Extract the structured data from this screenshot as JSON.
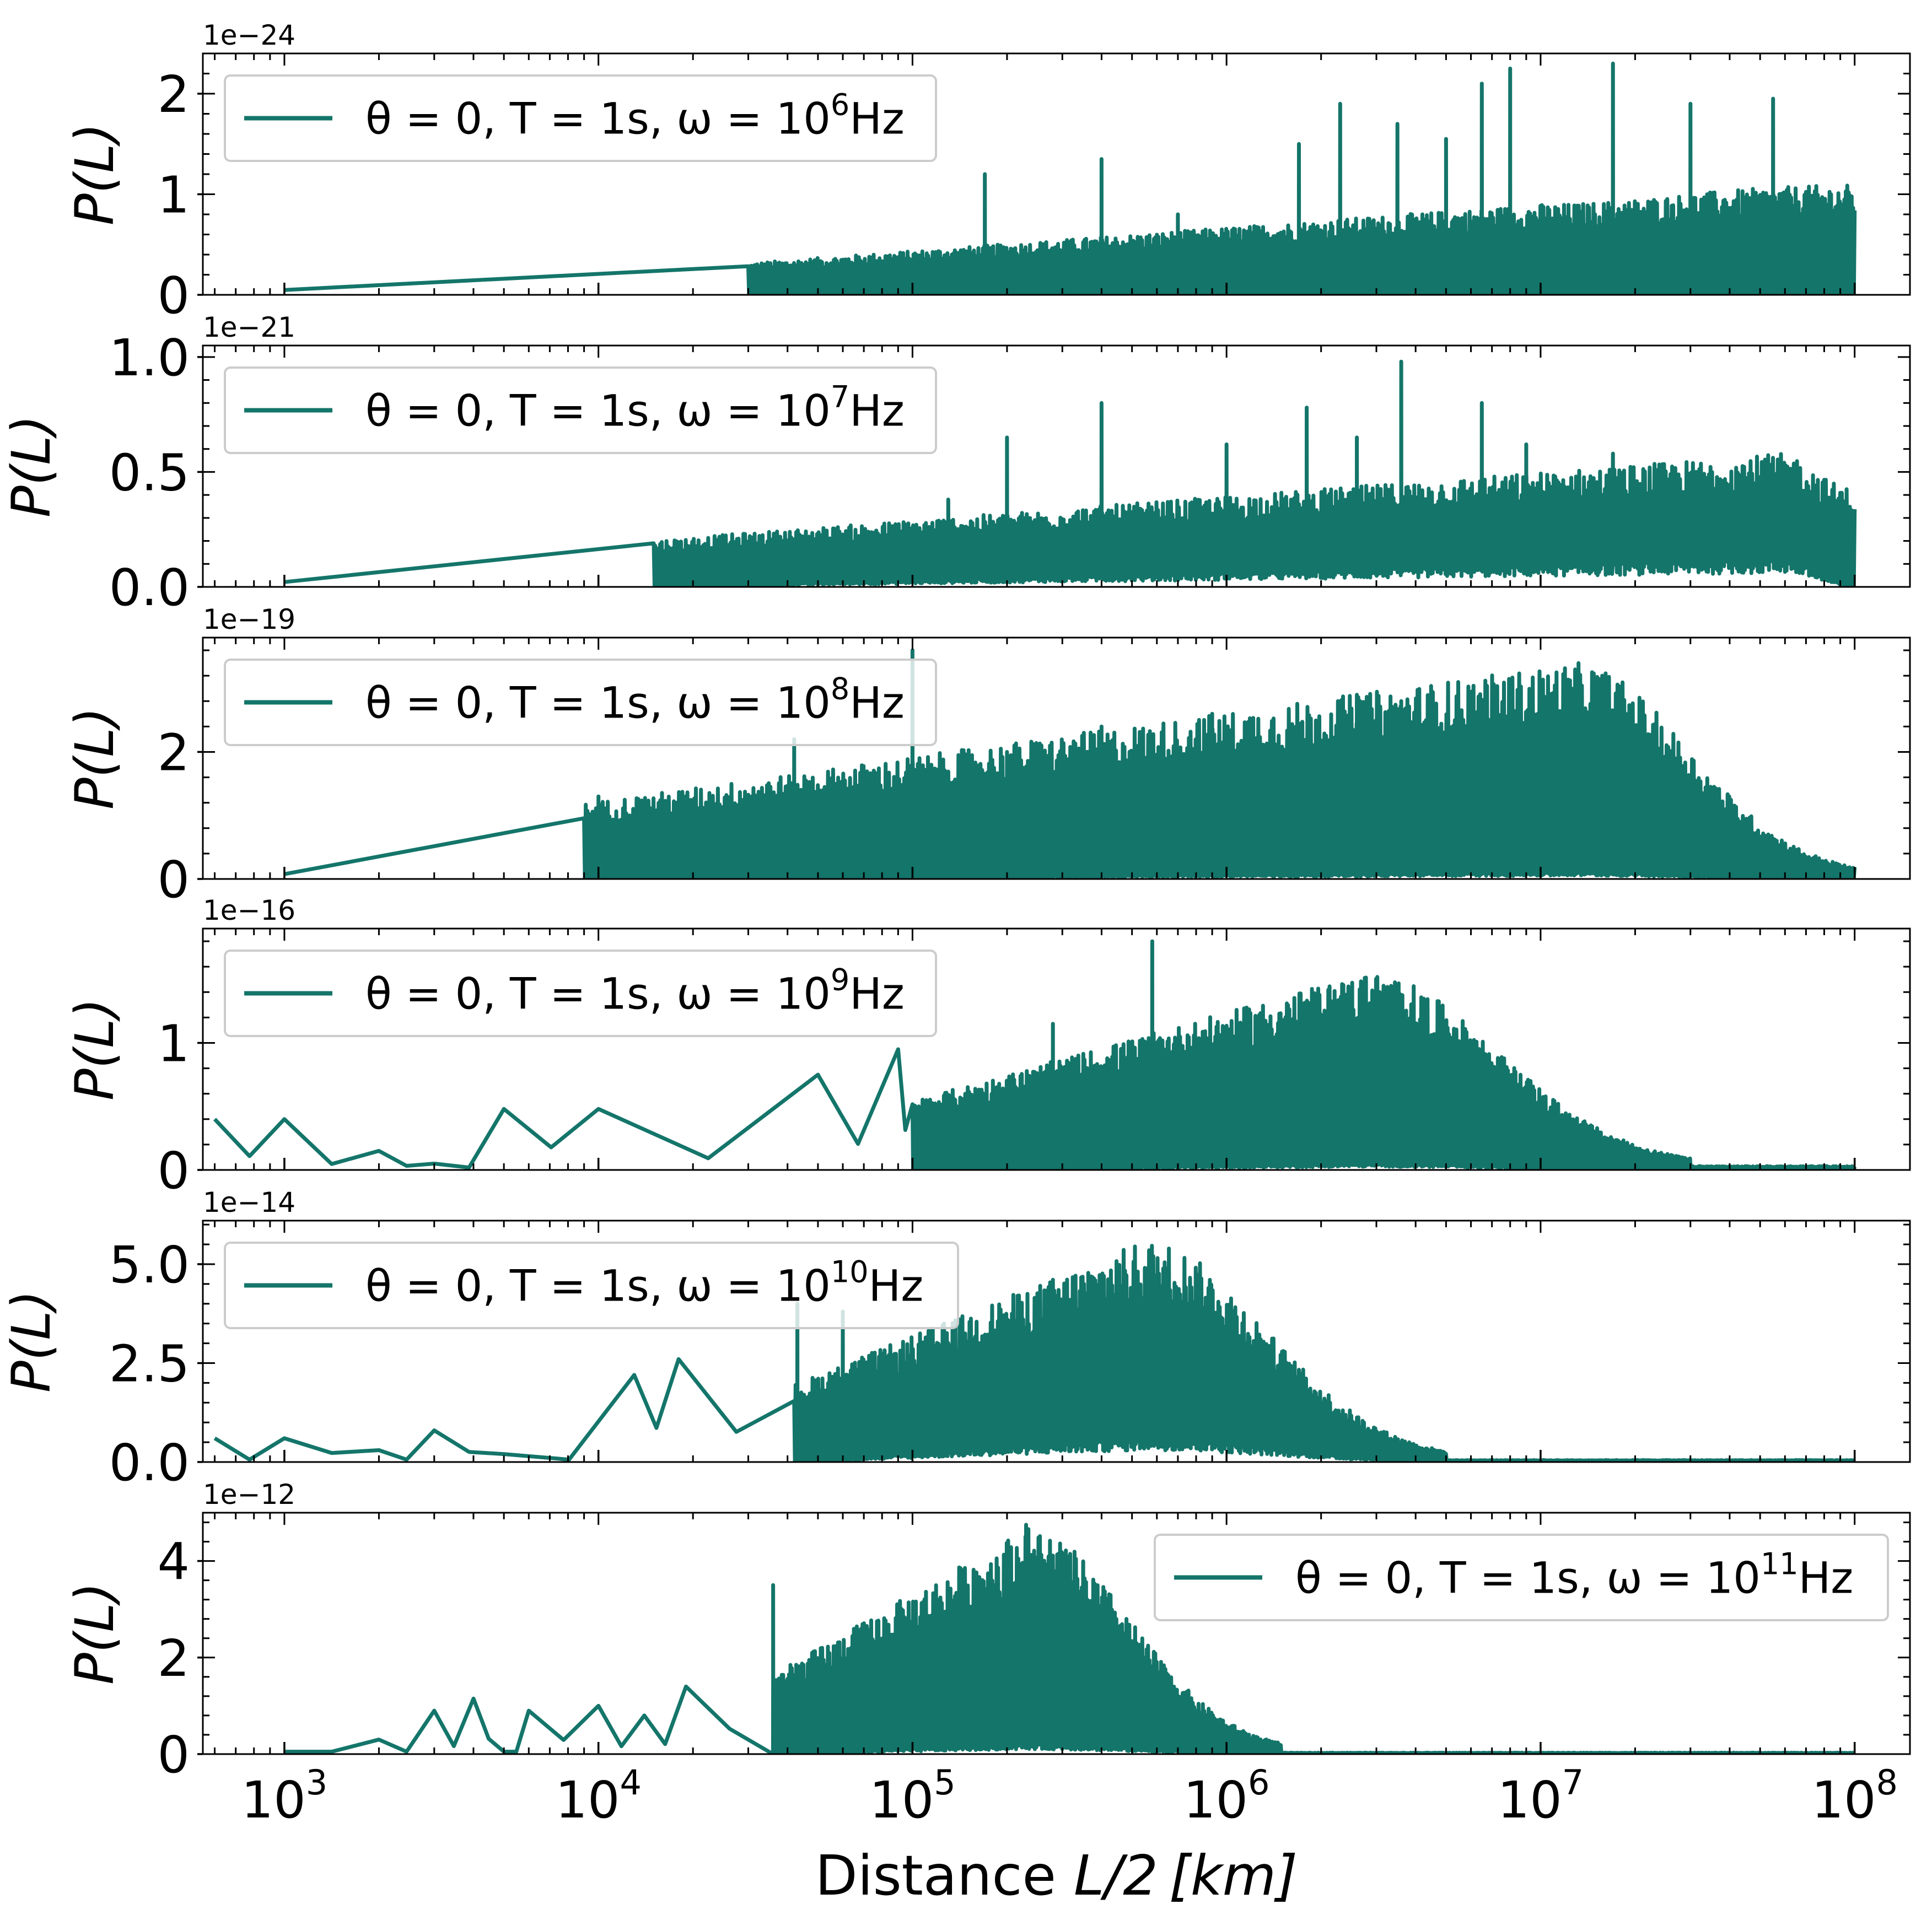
{
  "chart_data": {
    "type": "line",
    "line_color": "#14756A",
    "x_scale": "log",
    "xlim": [
      550,
      150000000
    ],
    "xticks": [
      1000,
      10000,
      100000,
      1000000,
      10000000,
      100000000
    ],
    "xtick_labels": [
      [
        "10",
        "3"
      ],
      [
        "10",
        "4"
      ],
      [
        "10",
        "5"
      ],
      [
        "10",
        "6"
      ],
      [
        "10",
        "7"
      ],
      [
        "10",
        "8"
      ]
    ],
    "xlabel_pre": "Distance ",
    "xlabel_math": "L/2 [km]",
    "panels": [
      {
        "ylabel": "P(L)",
        "offset": "1e−24",
        "ylim": [
          0,
          2.4
        ],
        "yticks": [
          0,
          1,
          2
        ],
        "ytick_labels": [
          "0",
          "1",
          "2"
        ],
        "legend": {
          "pre": "θ = 0, T = 1s, ω = 10",
          "sup": "6",
          "post": "Hz",
          "loc": "upper left"
        },
        "series": {
          "name": "θ = 0, T = 1s, ω = 10⁶Hz",
          "x_range": [
            1000,
            100000000
          ],
          "onset": 30000,
          "ramp_end": 10000000,
          "peak": 0.9,
          "base": 0.0,
          "decay_end": 100000000,
          "tail": 1.1,
          "spikes": [
            [
              40000,
              0.1
            ],
            [
              60000,
              0.2
            ],
            [
              100000,
              0.35
            ],
            [
              170000,
              1.2
            ],
            [
              400000,
              1.35
            ],
            [
              700000,
              0.8
            ],
            [
              1700000,
              1.5
            ],
            [
              2300000,
              1.9
            ],
            [
              3500000,
              1.7
            ],
            [
              5000000,
              1.55
            ],
            [
              6500000,
              2.1
            ],
            [
              8000000,
              2.25
            ],
            [
              17000000,
              2.3
            ],
            [
              30000000,
              1.9
            ],
            [
              55000000,
              1.95
            ]
          ]
        }
      },
      {
        "ylabel": "P(L)",
        "offset": "1e−21",
        "ylim": [
          0,
          1.05
        ],
        "yticks": [
          0,
          0.5,
          1.0
        ],
        "ytick_labels": [
          "0.0",
          "0.5",
          "1.0"
        ],
        "legend": {
          "pre": "θ = 0, T = 1s, ω = 10",
          "sup": "7",
          "post": "Hz",
          "loc": "upper left"
        },
        "series": {
          "name": "θ = 0, T = 1s, ω = 10⁷Hz",
          "x_range": [
            1000,
            100000000
          ],
          "onset": 15000,
          "ramp_end": 60000000,
          "peak": 0.58,
          "base": 0.12,
          "decay_end": 100000000,
          "tail": 0.42,
          "spikes": [
            [
              42000,
              0.18
            ],
            [
              60000,
              0.15
            ],
            [
              90000,
              0.25
            ],
            [
              130000,
              0.38
            ],
            [
              200000,
              0.65
            ],
            [
              400000,
              0.8
            ],
            [
              1000000,
              0.62
            ],
            [
              1800000,
              0.78
            ],
            [
              2600000,
              0.65
            ],
            [
              3600000,
              0.98
            ],
            [
              6500000,
              0.8
            ],
            [
              9000000,
              0.62
            ],
            [
              17000000,
              0.58
            ]
          ]
        }
      },
      {
        "ylabel": "P(L)",
        "offset": "1e−19",
        "ylim": [
          0,
          3.8
        ],
        "yticks": [
          0,
          2
        ],
        "ytick_labels": [
          "0",
          "2"
        ],
        "legend": {
          "pre": "θ = 0, T = 1s, ω = 10",
          "sup": "8",
          "post": "Hz",
          "loc": "upper left"
        },
        "series": {
          "name": "θ = 0, T = 1s, ω = 10⁸Hz",
          "x_range": [
            1000,
            100000000
          ],
          "onset": 9000,
          "ramp_end": 13000000,
          "peak": 3.4,
          "base": 0.1,
          "decay_end": 100000000,
          "tail": 0.05,
          "spikes": [
            [
              10000,
              1.3
            ],
            [
              42000,
              2.2
            ],
            [
              100000,
              3.6
            ],
            [
              200000,
              2.0
            ],
            [
              400000,
              2.4
            ],
            [
              900000,
              2.6
            ],
            [
              2600000,
              2.9
            ],
            [
              3600000,
              2.8
            ],
            [
              18000000,
              2.8
            ]
          ]
        }
      },
      {
        "ylabel": "P(L)",
        "offset": "1e−16",
        "ylim": [
          0,
          1.9
        ],
        "yticks": [
          0,
          1
        ],
        "ytick_labels": [
          "0",
          "1"
        ],
        "legend": {
          "pre": "θ = 0, T = 1s, ω = 10",
          "sup": "9",
          "post": "Hz",
          "loc": "upper left"
        },
        "series": {
          "name": "θ = 0, T = 1s, ω = 10⁹Hz",
          "x_range": [
            600,
            100000000
          ],
          "onset": 100000,
          "ramp_end": 2800000,
          "peak": 1.55,
          "base": 0.05,
          "decay_end": 30000000,
          "tail": 0.03,
          "spikes": [
            [
              600,
              0.4
            ],
            [
              1000,
              0.4
            ],
            [
              2000,
              0.15
            ],
            [
              3000,
              0.05
            ],
            [
              5000,
              0.48
            ],
            [
              10000,
              0.48
            ],
            [
              50000,
              0.75
            ],
            [
              90000,
              0.95
            ],
            [
              280000,
              1.15
            ],
            [
              580000,
              1.8
            ]
          ]
        }
      },
      {
        "ylabel": "P(L)",
        "offset": "1e−14",
        "ylim": [
          0,
          6.1
        ],
        "yticks": [
          0,
          2.5,
          5.0
        ],
        "ytick_labels": [
          "0.0",
          "2.5",
          "5.0"
        ],
        "legend": {
          "pre": "θ = 0, T = 1s, ω = 10",
          "sup": "10",
          "post": "Hz",
          "loc": "upper left"
        },
        "series": {
          "name": "θ = 0, T = 1s, ω = 10¹⁰Hz",
          "x_range": [
            600,
            100000000
          ],
          "onset": 42000,
          "ramp_end": 550000,
          "peak": 5.6,
          "base": 0.6,
          "decay_end": 5000000,
          "tail": 0.05,
          "spikes": [
            [
              600,
              0.6
            ],
            [
              1000,
              0.6
            ],
            [
              2000,
              0.3
            ],
            [
              3000,
              0.8
            ],
            [
              5000,
              0.2
            ],
            [
              13000,
              2.2
            ],
            [
              18000,
              2.6
            ],
            [
              43000,
              4.0
            ],
            [
              60000,
              3.8
            ]
          ]
        }
      },
      {
        "ylabel": "P(L)",
        "offset": "1e−12",
        "ylim": [
          0,
          5.0
        ],
        "yticks": [
          0,
          2,
          4
        ],
        "ytick_labels": [
          "0",
          "2",
          "4"
        ],
        "legend": {
          "pre": "θ = 0, T = 1s, ω = 10",
          "sup": "11",
          "post": "Hz",
          "loc": "upper right"
        },
        "series": {
          "name": "θ = 0, T = 1s, ω = 10¹¹Hz",
          "x_range": [
            1000,
            100000000
          ],
          "onset": 36000,
          "ramp_end": 230000,
          "peak": 4.7,
          "base": 0.2,
          "decay_end": 1500000,
          "tail": 0.03,
          "spikes": [
            [
              1000,
              0.05
            ],
            [
              2000,
              0.3
            ],
            [
              3000,
              0.9
            ],
            [
              4000,
              1.15
            ],
            [
              5000,
              0.05
            ],
            [
              6000,
              0.9
            ],
            [
              10000,
              1.0
            ],
            [
              14000,
              0.8
            ],
            [
              19000,
              1.4
            ],
            [
              36000,
              3.5
            ],
            [
              230000,
              4.75
            ]
          ]
        }
      }
    ]
  }
}
